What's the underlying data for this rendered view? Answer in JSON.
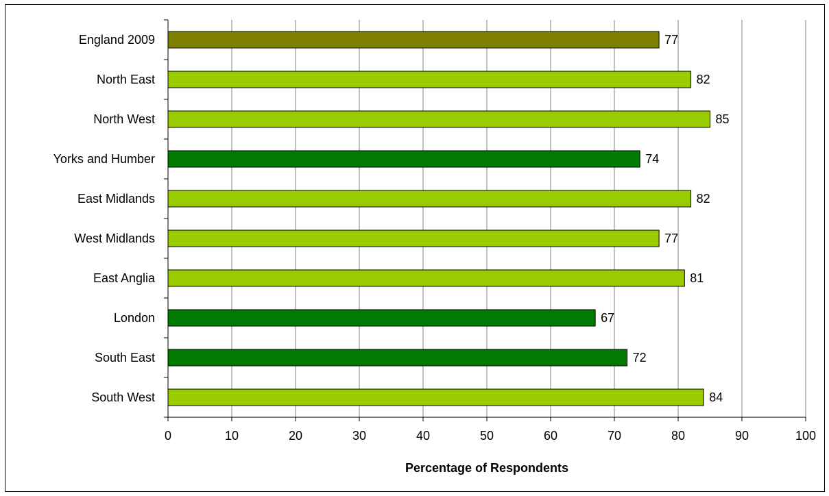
{
  "chart_data": {
    "type": "bar",
    "orientation": "horizontal",
    "categories": [
      "England 2009",
      "North East",
      "North West",
      "Yorks and Humber",
      "East Midlands",
      "West Midlands",
      "East Anglia",
      "London",
      "South East",
      "South West"
    ],
    "values": [
      77,
      82,
      85,
      74,
      82,
      77,
      81,
      67,
      72,
      84
    ],
    "bar_colors": [
      "#808000",
      "#99CC00",
      "#99CC00",
      "#007A00",
      "#99CC00",
      "#99CC00",
      "#99CC00",
      "#007A00",
      "#007A00",
      "#99CC00"
    ],
    "xlabel": "Percentage of Respondents",
    "ylabel": "",
    "xlim": [
      0,
      100
    ],
    "xticks": [
      0,
      10,
      20,
      30,
      40,
      50,
      60,
      70,
      80,
      90,
      100
    ],
    "grid": "vertical",
    "legend": "none"
  }
}
